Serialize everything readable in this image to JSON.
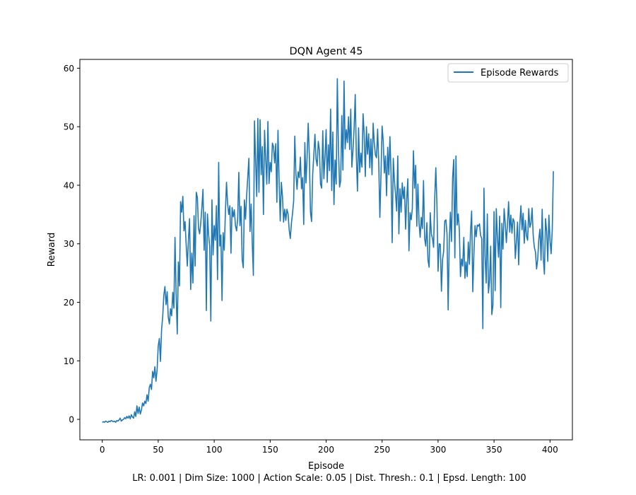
{
  "chart_data": {
    "type": "line",
    "title": "DQN Agent 45",
    "xlabel": "Episode",
    "ylabel": "Reward",
    "caption": "LR: 0.001 | Dim Size: 1000 | Action Scale: 0.05 | Dist. Thresh.: 0.1 | Epsd. Length: 100",
    "xlim": [
      -20,
      420
    ],
    "ylim": [
      -3.5,
      61.5
    ],
    "xticks": [
      0,
      50,
      100,
      150,
      200,
      250,
      300,
      350,
      400
    ],
    "yticks": [
      0,
      10,
      20,
      30,
      40,
      50,
      60
    ],
    "legend_position": "top-right",
    "grid": false,
    "colors": {
      "line": "#1f77b4"
    },
    "series": [
      {
        "name": "Episode Rewards",
        "x_start": 0,
        "x_step": 1,
        "y": [
          -0.5,
          -0.4,
          -0.5,
          -0.3,
          -0.4,
          -0.5,
          -0.3,
          -0.4,
          -0.2,
          -0.3,
          -0.4,
          -0.3,
          -0.5,
          -0.2,
          -0.3,
          -0.1,
          0.2,
          -0.3,
          -0.1,
          0.0,
          0.3,
          0.1,
          0.5,
          0.2,
          0.6,
          0.1,
          0.8,
          0.4,
          0.2,
          1.3,
          0.5,
          2.3,
          1.0,
          2.1,
          0.9,
          1.6,
          2.8,
          2.3,
          3.1,
          2.7,
          4.2,
          3.1,
          5.4,
          6.0,
          5.1,
          8.2,
          7.1,
          9.0,
          6.5,
          8.4,
          12.5,
          13.8,
          9.9,
          15.3,
          17.5,
          21.2,
          22.7,
          19.6,
          21.8,
          17.4,
          16.3,
          18.9,
          17.7,
          21.7,
          19.0,
          31.1,
          21.5,
          14.6,
          26.9,
          22.8,
          37.2,
          35.4,
          38.1,
          32.2,
          33.8,
          29.7,
          26.2,
          30.8,
          34.3,
          22.2,
          28.4,
          23.3,
          34.8,
          26.2,
          38.8,
          37.9,
          32.6,
          31.7,
          33.5,
          36.2,
          39.3,
          28.9,
          35.4,
          18.6,
          35.1,
          31.6,
          29.5,
          16.8,
          37.5,
          28.1,
          33.1,
          30.6,
          36.5,
          23.9,
          43.9,
          29.6,
          31.5,
          20.3,
          31.9,
          28.9,
          35.3,
          40.5,
          36.8,
          35.0,
          36.5,
          28.4,
          36.2,
          34.6,
          35.8,
          33.1,
          32.2,
          34.3,
          42.2,
          33.1,
          36.4,
          27.3,
          25.9,
          37.5,
          34.2,
          38.2,
          41.4,
          44.6,
          32.1,
          36.8,
          30.2,
          24.6,
          51.0,
          44.3,
          38.1,
          51.4,
          38.8,
          51.2,
          41.8,
          46.6,
          35.0,
          49.4,
          44.6,
          40.2,
          50.9,
          40.3,
          43.9,
          42.3,
          47.2,
          46.6,
          43.8,
          47.1,
          37.1,
          49.4,
          40.6,
          33.9,
          40.5,
          38.1,
          33.7,
          35.9,
          34.0,
          35.9,
          35.1,
          32.4,
          30.9,
          33.5,
          35.2,
          37.3,
          48.4,
          42.0,
          39.3,
          42.3,
          41.3,
          44.8,
          39.4,
          41.3,
          33.3,
          47.3,
          40.4,
          44.8,
          50.6,
          45.1,
          35.4,
          33.8,
          41.9,
          45.1,
          48.7,
          44.5,
          43.3,
          47.5,
          46.0,
          40.2,
          39.5,
          49.3,
          41.1,
          44.9,
          49.5,
          40.5,
          46.9,
          42.5,
          53.0,
          39.1,
          49.1,
          36.7,
          44.3,
          40.2,
          58.2,
          46.5,
          39.7,
          40.8,
          51.9,
          42.6,
          57.8,
          46.2,
          49.5,
          47.3,
          51.7,
          46.1,
          53.0,
          43.1,
          46.0,
          49.7,
          55.5,
          44.9,
          39.0,
          49.8,
          42.2,
          45.5,
          43.1,
          52.2,
          48.7,
          41.5,
          50.0,
          45.3,
          48.8,
          43.0,
          47.9,
          41.8,
          50.6,
          47.2,
          45.2,
          44.7,
          49.6,
          43.9,
          34.5,
          41.7,
          50.1,
          47.6,
          42.1,
          45.0,
          38.2,
          46.5,
          41.8,
          48.3,
          42.0,
          30.2,
          44.6,
          40.8,
          38.5,
          35.6,
          45.0,
          31.7,
          39.4,
          35.4,
          40.4,
          37.7,
          39.7,
          32.5,
          37.6,
          41.1,
          28.8,
          35.3,
          34.1,
          36.0,
          45.9,
          39.5,
          43.4,
          33.0,
          40.2,
          33.6,
          31.1,
          34.5,
          32.6,
          40.8,
          30.9,
          29.6,
          33.6,
          27.2,
          26.0,
          35.3,
          31.7,
          30.9,
          29.4,
          37.7,
          43.0,
          36.6,
          25.3,
          30.0,
          29.9,
          21.9,
          27.3,
          28.7,
          33.9,
          34.1,
          31.7,
          18.7,
          30.3,
          35.4,
          30.4,
          41.3,
          44.4,
          27.6,
          45.0,
          33.2,
          35.1,
          32.4,
          24.4,
          27.4,
          26.2,
          31.1,
          24.1,
          26.9,
          24.4,
          30.3,
          26.5,
          32.1,
          35.6,
          21.8,
          28.2,
          33.1,
          31.2,
          33.2,
          33.0,
          33.4,
          31.4,
          30.9,
          15.5,
          39.5,
          27.8,
          23.3,
          35.1,
          21.6,
          23.7,
          29.6,
          17.9,
          19.5,
          35.5,
          22.0,
          36.0,
          31.2,
          27.7,
          34.7,
          19.1,
          33.5,
          29.1,
          36.0,
          33.5,
          30.2,
          33.4,
          37.2,
          32.0,
          34.9,
          31.8,
          34.3,
          33.8,
          27.5,
          30.5,
          33.7,
          26.4,
          33.3,
          36.5,
          32.4,
          35.2,
          30.1,
          34.0,
          31.3,
          30.6,
          36.0,
          32.8,
          33.5,
          36.1,
          31.4,
          29.4,
          28.6,
          25.7,
          27.3,
          30.8,
          32.5,
          27.2,
          35.9,
          27.6,
          24.8,
          34.3,
          32.1,
          27.0,
          34.9,
          30.6,
          28.3,
          32.4,
          42.4
        ]
      }
    ]
  }
}
